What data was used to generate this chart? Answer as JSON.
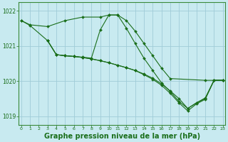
{
  "background_color": "#c8eaf0",
  "plot_bg_color": "#c8eaf0",
  "grid_color": "#a0ccd8",
  "line_color": "#1a6e1a",
  "marker_color": "#1a6e1a",
  "xlabel": "Graphe pression niveau de la mer (hPa)",
  "xlabel_fontsize": 7,
  "ylim": [
    1018.75,
    1022.25
  ],
  "xlim": [
    -0.3,
    23.3
  ],
  "yticks": [
    1019,
    1020,
    1021,
    1022
  ],
  "xticks": [
    0,
    1,
    2,
    3,
    4,
    5,
    6,
    7,
    8,
    9,
    10,
    11,
    12,
    13,
    14,
    15,
    16,
    17,
    18,
    19,
    20,
    21,
    22,
    23
  ],
  "series": [
    {
      "x": [
        0,
        1,
        3,
        5,
        7,
        9,
        10,
        11,
        12,
        13,
        14,
        15,
        16,
        17,
        21,
        22,
        23
      ],
      "y": [
        1021.72,
        1021.6,
        1021.55,
        1021.72,
        1021.82,
        1021.82,
        1021.88,
        1021.88,
        1021.72,
        1021.42,
        1021.07,
        1020.72,
        1020.37,
        1020.07,
        1020.02,
        1020.02,
        1020.02
      ]
    },
    {
      "x": [
        0,
        1,
        3,
        4,
        5,
        6,
        7,
        8,
        9,
        10,
        11,
        12,
        13,
        14,
        15,
        16,
        17,
        18,
        19,
        20,
        21,
        22,
        23
      ],
      "y": [
        1021.72,
        1021.58,
        1021.15,
        1020.75,
        1020.72,
        1020.7,
        1020.68,
        1020.65,
        1021.45,
        1021.88,
        1021.88,
        1021.5,
        1021.07,
        1020.65,
        1020.3,
        1019.95,
        1019.7,
        1019.42,
        1019.22,
        1019.38,
        1019.5,
        1020.02,
        1020.02
      ]
    },
    {
      "x": [
        3,
        4,
        5,
        6,
        7,
        8,
        9,
        10,
        11,
        12,
        13,
        14,
        15,
        16,
        17,
        18,
        19,
        20,
        21,
        22,
        23
      ],
      "y": [
        1021.15,
        1020.75,
        1020.72,
        1020.7,
        1020.67,
        1020.63,
        1020.58,
        1020.52,
        1020.45,
        1020.38,
        1020.3,
        1020.2,
        1020.08,
        1019.92,
        1019.72,
        1019.5,
        1019.22,
        1019.38,
        1019.52,
        1020.02,
        1020.02
      ]
    },
    {
      "x": [
        3,
        4,
        5,
        6,
        7,
        8,
        9,
        10,
        11,
        12,
        13,
        14,
        15,
        16,
        17,
        18,
        19,
        20,
        21,
        22,
        23
      ],
      "y": [
        1021.15,
        1020.75,
        1020.72,
        1020.7,
        1020.67,
        1020.63,
        1020.58,
        1020.52,
        1020.45,
        1020.38,
        1020.3,
        1020.18,
        1020.05,
        1019.88,
        1019.65,
        1019.38,
        1019.15,
        1019.35,
        1019.48,
        1020.02,
        1020.02
      ]
    }
  ]
}
